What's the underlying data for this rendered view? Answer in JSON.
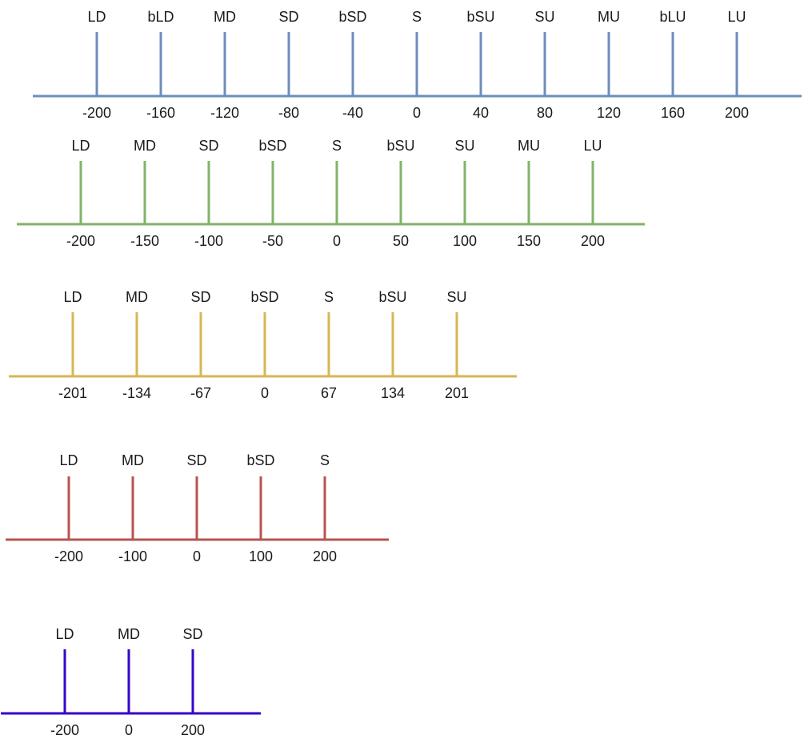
{
  "scales": [
    {
      "color": "#6c8ebf",
      "labels": [
        "LD",
        "bLD",
        "MD",
        "SD",
        "bSD",
        "S",
        "bSU",
        "SU",
        "MU",
        "bLU",
        "LU"
      ],
      "values": [
        "-200",
        "-160",
        "-120",
        "-80",
        "-40",
        "0",
        "40",
        "80",
        "120",
        "160",
        "200"
      ]
    },
    {
      "color": "#82b366",
      "labels": [
        "LD",
        "MD",
        "SD",
        "bSD",
        "S",
        "bSU",
        "SU",
        "MU",
        "LU"
      ],
      "values": [
        "-200",
        "-150",
        "-100",
        "-50",
        "0",
        "50",
        "100",
        "150",
        "200"
      ]
    },
    {
      "color": "#d6b656",
      "labels": [
        "LD",
        "MD",
        "SD",
        "bSD",
        "S",
        "bSU",
        "SU"
      ],
      "values": [
        "-201",
        "-134",
        "-67",
        "0",
        "67",
        "134",
        "201"
      ]
    },
    {
      "color": "#b85450",
      "labels": [
        "LD",
        "MD",
        "SD",
        "bSD",
        "S"
      ],
      "values": [
        "-200",
        "-100",
        "0",
        "100",
        "200"
      ]
    },
    {
      "color": "#3700cc",
      "labels": [
        "LD",
        "MD",
        "SD"
      ],
      "values": [
        "-200",
        "0",
        "200"
      ]
    }
  ]
}
